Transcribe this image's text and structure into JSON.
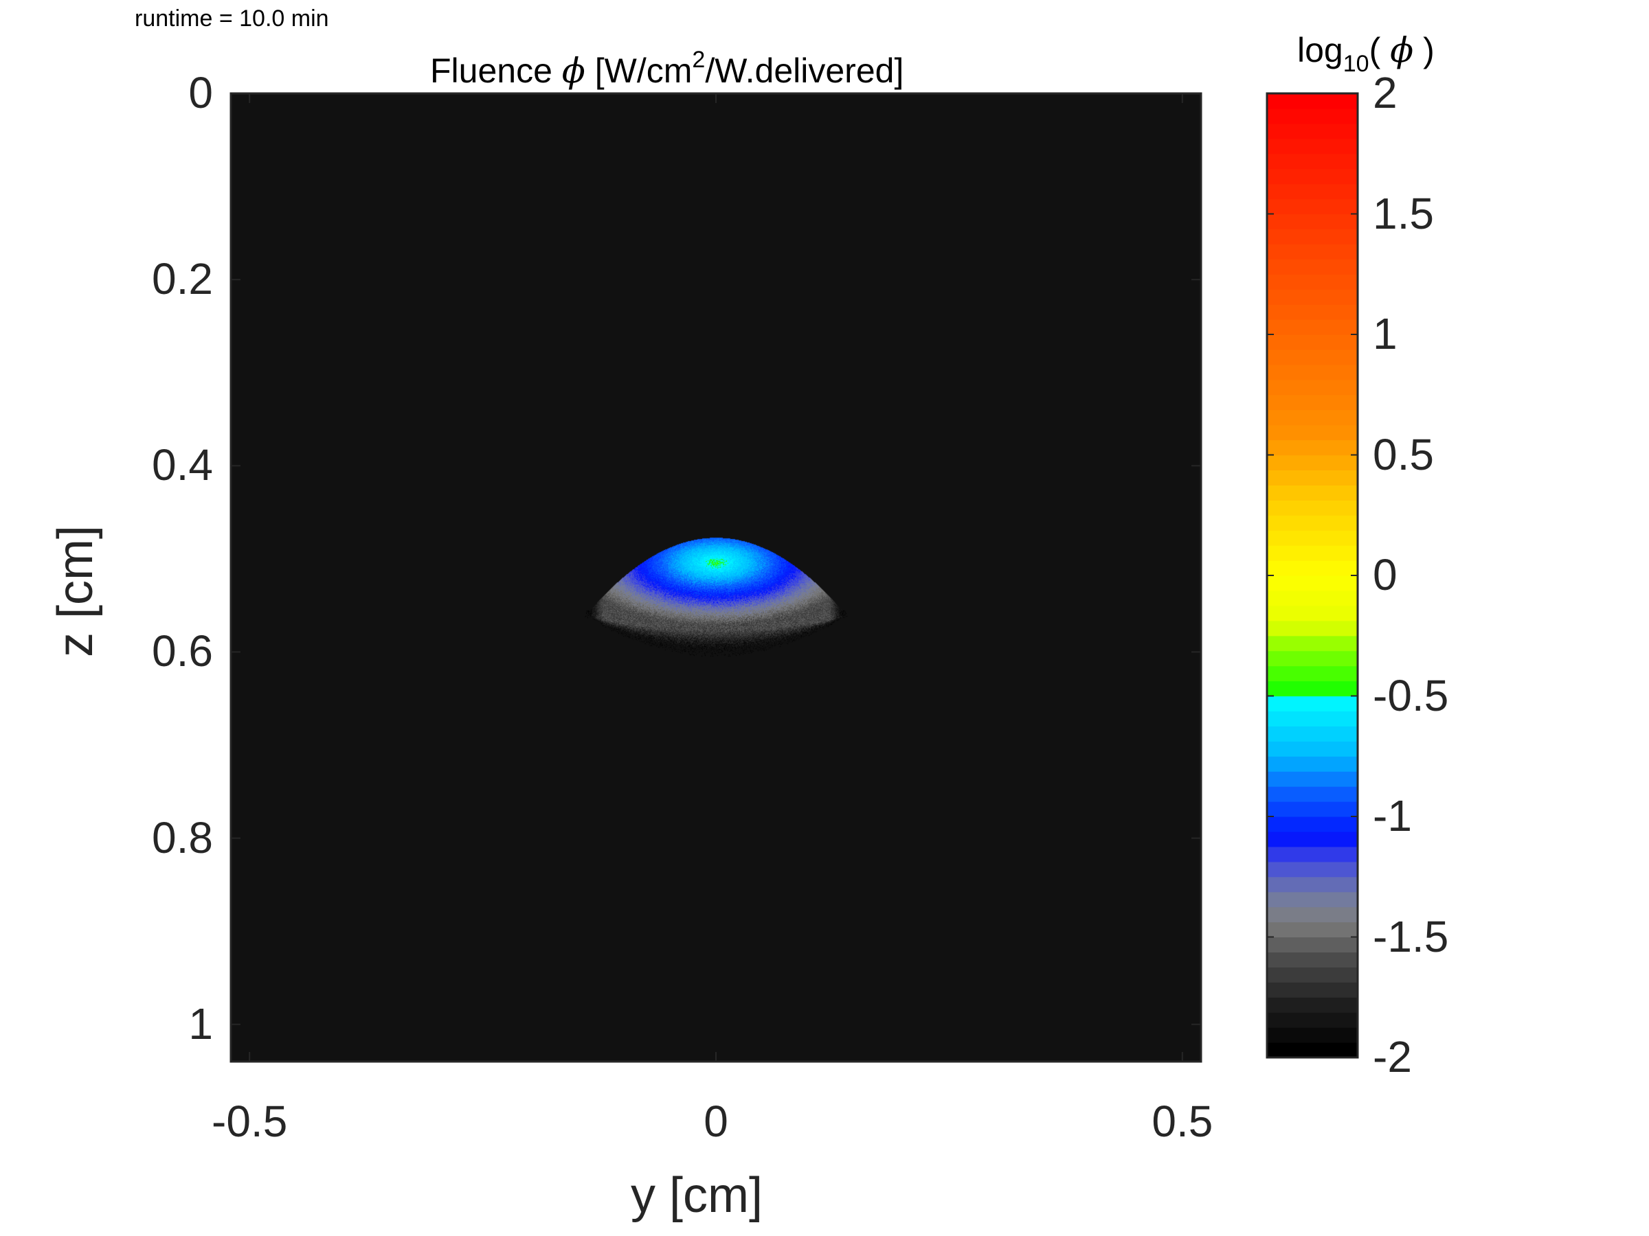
{
  "runtime_text": "runtime = 10.0 min",
  "title": {
    "prefix": "Fluence ",
    "symbol": "ϕ",
    "mid": " [W/cm",
    "sup": "2",
    "suffix": "/W.delivered]"
  },
  "colorbar_title": {
    "prefix": "log",
    "sub": "10",
    "open": "( ",
    "symbol": "ϕ",
    "close": " )"
  },
  "colors": {
    "background": "#111111",
    "axes": "#262626",
    "colormap": [
      "#000000",
      "#202020",
      "#505050",
      "#7e7e7e",
      "#707aa6",
      "#4048e2",
      "#0012ff",
      "#0a66ff",
      "#00b8ff",
      "#00ffff",
      "#1fff00",
      "#8cff00",
      "#e6ff00",
      "#ffff00",
      "#ffd000",
      "#ff9000",
      "#ff4c00",
      "#ff0000"
    ],
    "colormap_positions": [
      0,
      0.1,
      0.2,
      0.27,
      0.33,
      0.4,
      0.45,
      0.55,
      0.62,
      0.75,
      0.76,
      0.85,
      0.9,
      1.0,
      1.15,
      1.3,
      1.65,
      2.0
    ]
  },
  "chart_data": {
    "type": "heatmap",
    "title": "Fluence ϕ [W/cm2/W.delivered]",
    "xlabel": "y [cm]",
    "ylabel": "z [cm]",
    "xlim": [
      -0.52,
      0.52
    ],
    "ylim": [
      0,
      1.04
    ],
    "y_reversed": true,
    "x_ticks": [
      "-0.5",
      "0",
      "0.5"
    ],
    "x_tick_values": [
      -0.5,
      0,
      0.5
    ],
    "y_ticks": [
      "0",
      "0.2",
      "0.4",
      "0.6",
      "0.8",
      "1"
    ],
    "y_tick_values": [
      0,
      0.2,
      0.4,
      0.6,
      0.8,
      1.0
    ],
    "colorbar": {
      "label": "log10( ϕ )",
      "range": [
        -2,
        2
      ],
      "ticks": [
        "2",
        "1.5",
        "1",
        "0.5",
        "0",
        "-0.5",
        "-1",
        "-1.5",
        "-2"
      ],
      "tick_values": [
        2,
        1.5,
        1,
        0.5,
        0,
        -0.5,
        -1,
        -1.5,
        -2
      ],
      "levels": 64
    },
    "background_value": -2,
    "field": {
      "description_free": true,
      "center_y": 0,
      "top_z": 0.477,
      "widest_z": 0.555,
      "half_width_y": 0.135,
      "lower_fade_z": 0.6,
      "peak_log10": -0.45,
      "edge_log10": -1.6
    }
  }
}
